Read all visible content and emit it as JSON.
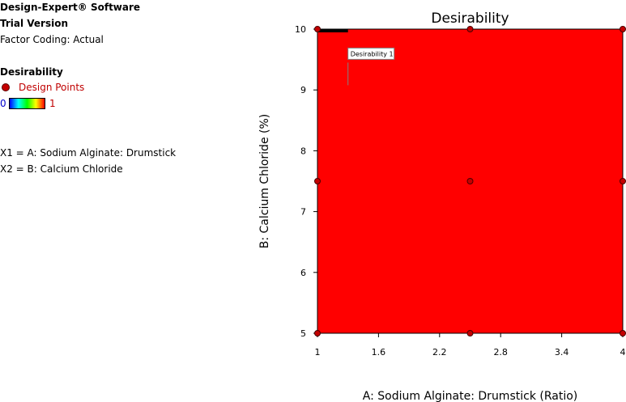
{
  "legend": {
    "software": "Design-Expert® Software",
    "version": "Trial Version",
    "coding": "Factor Coding: Actual",
    "response": "Desirability",
    "design_points_label": "Design Points",
    "scale_min": "0",
    "scale_max": "1",
    "x1": "X1 = A: Sodium Alginate: Drumstick",
    "x2": "X2 = B: Calcium Chloride"
  },
  "colors": {
    "plot_fill": "#ff0000",
    "design_point": "#c40000",
    "optimum_bar": "#000000"
  },
  "chart_data": {
    "type": "heatmap",
    "title": "Desirability",
    "xlabel": "A: Sodium Alginate: Drumstick (Ratio)",
    "ylabel": "B: Calcium Chloride (%)",
    "xlim": [
      1,
      4
    ],
    "ylim": [
      5,
      10
    ],
    "x_ticks": [
      "1",
      "1.6",
      "2.2",
      "2.8",
      "3.4",
      "4"
    ],
    "y_ticks": [
      "5",
      "6",
      "7",
      "8",
      "9",
      "10"
    ],
    "region_value": 1,
    "flag": {
      "label": "Desirability 1",
      "x": 1.3,
      "y": 9.37
    },
    "optimum_segment": {
      "x_from": 1.0,
      "x_to": 1.3,
      "y": 10
    },
    "design_points": [
      {
        "x": 1,
        "y": 10
      },
      {
        "x": 2.5,
        "y": 10
      },
      {
        "x": 4,
        "y": 10
      },
      {
        "x": 1,
        "y": 7.5
      },
      {
        "x": 2.5,
        "y": 7.5
      },
      {
        "x": 4,
        "y": 7.5
      },
      {
        "x": 1,
        "y": 5
      },
      {
        "x": 2.5,
        "y": 5
      },
      {
        "x": 4,
        "y": 5
      }
    ]
  }
}
